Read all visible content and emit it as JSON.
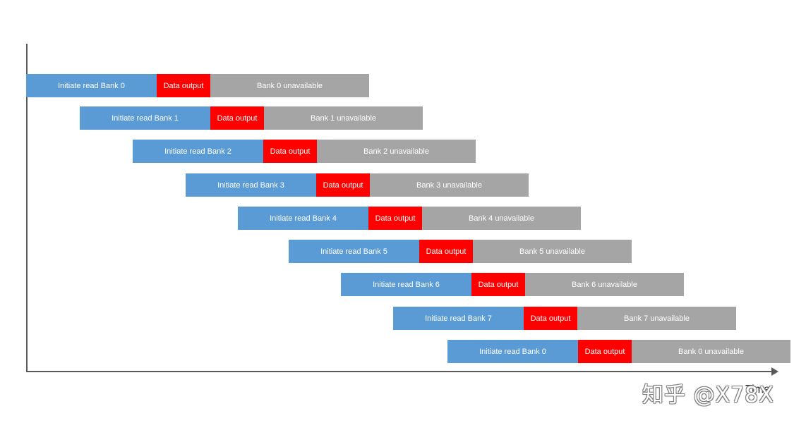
{
  "axis": {
    "x_label": "Time"
  },
  "watermark": "知乎 @X78X",
  "rows": [
    {
      "initiate": "Initiate read Bank 0",
      "output": "Data output",
      "unavailable": "Bank 0 unavailable"
    },
    {
      "initiate": "Initiate read Bank 1",
      "output": "Data output",
      "unavailable": "Bank 1 unavailable"
    },
    {
      "initiate": "Initiate read Bank 2",
      "output": "Data output",
      "unavailable": "Bank 2 unavailable"
    },
    {
      "initiate": "Initiate read Bank 3",
      "output": "Data output",
      "unavailable": "Bank  3 unavailable"
    },
    {
      "initiate": "Initiate read Bank 4",
      "output": "Data output",
      "unavailable": "Bank 4 unavailable"
    },
    {
      "initiate": "Initiate read Bank 5",
      "output": "Data output",
      "unavailable": "Bank 5 unavailable"
    },
    {
      "initiate": "Initiate read Bank 6",
      "output": "Data output",
      "unavailable": "Bank 6 unavailable"
    },
    {
      "initiate": "Initiate read Bank 7",
      "output": "Data output",
      "unavailable": "Bank 7 unavailable"
    },
    {
      "initiate": "Initiate read Bank 0",
      "output": "Data output",
      "unavailable": "Bank 0 unavailable"
    }
  ],
  "colors": {
    "initiate": "#5b9bd5",
    "output": "#ff0000",
    "unavailable": "#a5a5a5"
  }
}
